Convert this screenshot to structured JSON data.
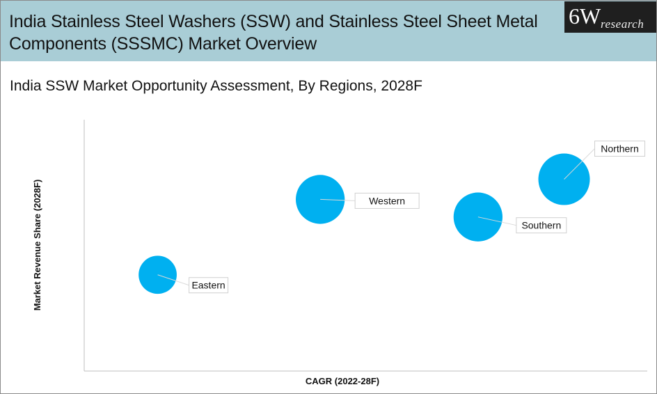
{
  "header": {
    "title": "India Stainless Steel Washers (SSW) and Stainless Steel Sheet Metal Components (SSSMC) Market Overview",
    "logo_main": "6W",
    "logo_sub": "research"
  },
  "colors": {
    "header_bg": "#a9cdd6",
    "bubble": "#00b0f0",
    "axis": "#bfbfbf"
  },
  "chart_data": {
    "type": "scatter",
    "subtitle": "India SSW Market Opportunity Assessment, By Regions, 2028F",
    "xlabel": "CAGR (2022-28F)",
    "ylabel": "Market Revenue Share (2028F)",
    "xlim": [
      0,
      100
    ],
    "ylim": [
      0,
      100
    ],
    "grid": false,
    "tick_labels": "none",
    "points": [
      {
        "name": "Eastern",
        "x": 11,
        "y": 48,
        "size": 0.74
      },
      {
        "name": "Western",
        "x": 45,
        "y": 78,
        "size": 0.95
      },
      {
        "name": "Southern",
        "x": 78,
        "y": 71,
        "size": 0.95
      },
      {
        "name": "Northern",
        "x": 96,
        "y": 86,
        "size": 1.0
      }
    ]
  }
}
